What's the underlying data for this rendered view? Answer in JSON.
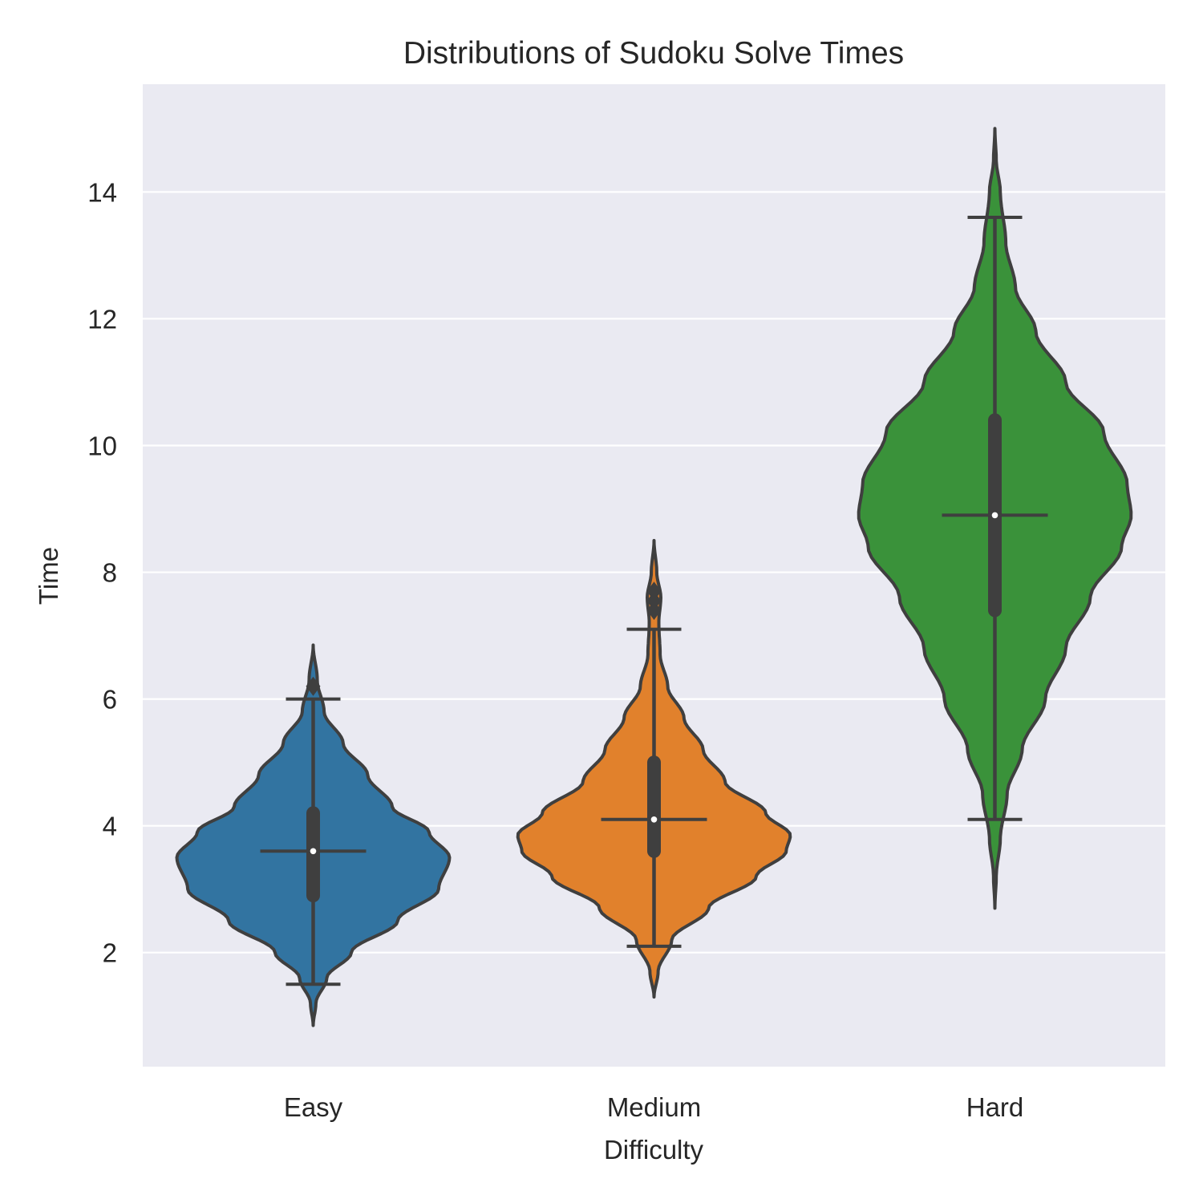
{
  "chart_data": {
    "type": "violin",
    "title": "Distributions of Sudoku Solve Times",
    "xlabel": "Difficulty",
    "ylabel": "Time",
    "categories": [
      "Easy",
      "Medium",
      "Hard"
    ],
    "ylim": [
      0.2,
      15.7
    ],
    "yticks": [
      2,
      4,
      6,
      8,
      10,
      12,
      14
    ],
    "grid": true,
    "legend": "none",
    "series": [
      {
        "category": "Easy",
        "color": "#3274a1",
        "min": 1.5,
        "q1": 2.9,
        "median": 3.6,
        "q3": 4.2,
        "max": 6.0,
        "outliers": [
          6.2
        ],
        "kde_range": [
          0.85,
          6.85
        ],
        "density_profile": [
          [
            0.85,
            0.0
          ],
          [
            1.2,
            0.02
          ],
          [
            1.6,
            0.1
          ],
          [
            2.0,
            0.28
          ],
          [
            2.5,
            0.62
          ],
          [
            3.0,
            0.92
          ],
          [
            3.5,
            1.0
          ],
          [
            3.9,
            0.85
          ],
          [
            4.3,
            0.58
          ],
          [
            4.8,
            0.4
          ],
          [
            5.3,
            0.22
          ],
          [
            5.8,
            0.08
          ],
          [
            6.3,
            0.03
          ],
          [
            6.85,
            0.0
          ]
        ]
      },
      {
        "category": "Medium",
        "color": "#e1812c",
        "min": 2.1,
        "q1": 3.6,
        "median": 4.1,
        "q3": 5.0,
        "max": 7.1,
        "outliers": [
          7.4,
          7.55,
          7.7
        ],
        "kde_range": [
          1.3,
          8.5
        ],
        "density_profile": [
          [
            1.3,
            0.0
          ],
          [
            1.7,
            0.03
          ],
          [
            2.2,
            0.13
          ],
          [
            2.7,
            0.4
          ],
          [
            3.2,
            0.75
          ],
          [
            3.6,
            0.97
          ],
          [
            3.85,
            1.0
          ],
          [
            4.2,
            0.82
          ],
          [
            4.7,
            0.52
          ],
          [
            5.2,
            0.36
          ],
          [
            5.7,
            0.22
          ],
          [
            6.2,
            0.1
          ],
          [
            6.7,
            0.045
          ],
          [
            7.2,
            0.035
          ],
          [
            7.6,
            0.05
          ],
          [
            8.0,
            0.02
          ],
          [
            8.5,
            0.0
          ]
        ]
      },
      {
        "category": "Hard",
        "color": "#3a923a",
        "min": 4.1,
        "q1": 7.4,
        "median": 8.9,
        "q3": 10.4,
        "max": 13.6,
        "outliers": [],
        "kde_range": [
          2.7,
          15.0
        ],
        "density_profile": [
          [
            2.7,
            0.0
          ],
          [
            3.2,
            0.01
          ],
          [
            3.8,
            0.04
          ],
          [
            4.5,
            0.09
          ],
          [
            5.2,
            0.2
          ],
          [
            6.0,
            0.37
          ],
          [
            6.8,
            0.52
          ],
          [
            7.6,
            0.7
          ],
          [
            8.4,
            0.93
          ],
          [
            8.9,
            1.0
          ],
          [
            9.4,
            0.97
          ],
          [
            10.2,
            0.8
          ],
          [
            11.0,
            0.52
          ],
          [
            11.8,
            0.3
          ],
          [
            12.5,
            0.15
          ],
          [
            13.2,
            0.08
          ],
          [
            14.0,
            0.04
          ],
          [
            14.5,
            0.01
          ],
          [
            15.0,
            0.0
          ]
        ]
      }
    ]
  }
}
